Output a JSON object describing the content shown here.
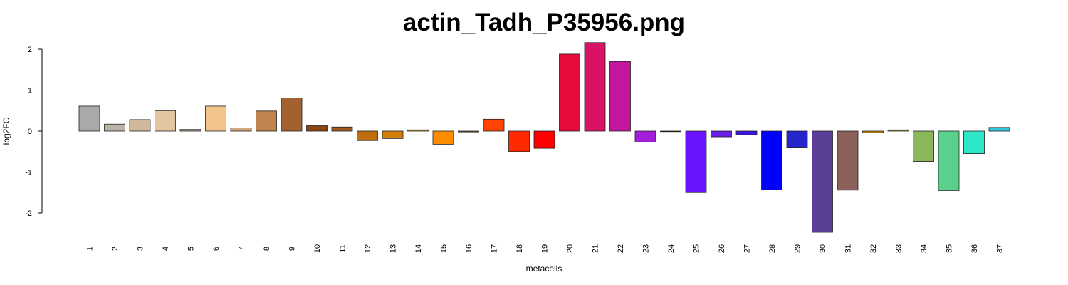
{
  "chart_data": {
    "type": "bar",
    "title": "actin_Tadh_P35956.png",
    "xlabel": "metacells",
    "ylabel": "log2FC",
    "ylim": [
      -2.5,
      2.3
    ],
    "yticks": [
      "-2",
      "-1",
      "0",
      "1",
      "2"
    ],
    "ytick_values": [
      -2,
      -1,
      0,
      1,
      2
    ],
    "grid": false,
    "categories": [
      "1",
      "2",
      "3",
      "4",
      "5",
      "6",
      "7",
      "8",
      "9",
      "10",
      "11",
      "12",
      "13",
      "14",
      "15",
      "16",
      "17",
      "18",
      "19",
      "20",
      "21",
      "22",
      "23",
      "24",
      "25",
      "26",
      "27",
      "28",
      "29",
      "30",
      "31",
      "32",
      "33",
      "34",
      "35",
      "36",
      "37"
    ],
    "values": [
      0.61,
      0.17,
      0.28,
      0.5,
      0.04,
      0.61,
      0.08,
      0.49,
      0.81,
      0.13,
      0.1,
      -0.23,
      -0.18,
      0.03,
      -0.32,
      -0.02,
      0.29,
      -0.5,
      -0.42,
      1.88,
      2.16,
      1.7,
      -0.27,
      -0.01,
      -1.5,
      -0.14,
      -0.09,
      -1.43,
      -0.41,
      -2.47,
      -1.44,
      -0.04,
      0.03,
      -0.74,
      -1.45,
      -0.55,
      0.09
    ],
    "colors": [
      "#a9a9a9",
      "#bdb2a6",
      "#d2b89a",
      "#e3c59f",
      "#c3a788",
      "#f2c48c",
      "#d5a77c",
      "#c0824f",
      "#a2612f",
      "#8b4513",
      "#a1591e",
      "#c06d0e",
      "#d47f0c",
      "#b8860b",
      "#ff8c00",
      "#996633",
      "#ff4500",
      "#ff2a00",
      "#ff0000",
      "#e80a3a",
      "#d81366",
      "#c4179e",
      "#a21ed9",
      "#8c3fd9",
      "#6b14ff",
      "#6a1ee8",
      "#3d14e3",
      "#0000ff",
      "#2626cc",
      "#5b3f96",
      "#8b5f5a",
      "#b8860b",
      "#9a8a2e",
      "#8ab859",
      "#5bd08d",
      "#2ee6c8",
      "#2ec8e0"
    ]
  }
}
